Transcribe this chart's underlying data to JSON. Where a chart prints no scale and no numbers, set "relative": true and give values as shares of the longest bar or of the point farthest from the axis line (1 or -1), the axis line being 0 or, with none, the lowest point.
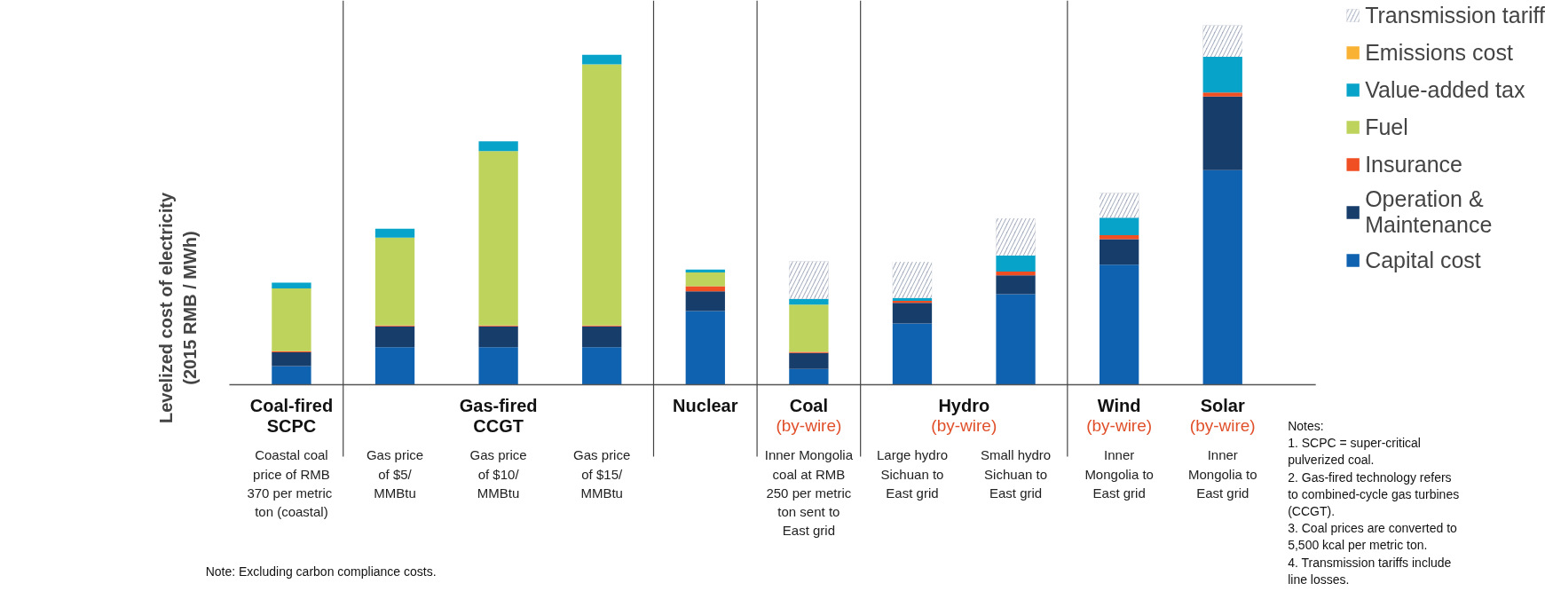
{
  "chart_data": {
    "type": "bar",
    "stacked": true,
    "relative": true,
    "ylabel": "Levelized cost of electricity\n(2015 RMB / MWh)",
    "categories": [
      "Coastal coal\nprice of RMB\n370 per  metric\nton (coastal)",
      "Gas price\nof $5/\nMMBtu",
      "Gas price\nof $10/\nMMBtu",
      "Gas price\nof $15/\nMMBtu",
      null,
      "Inner Mongolia\ncoal at RMB\n250 per metric\nton sent to\nEast grid",
      "Large hydro\nSichuan to\nEast grid",
      "Small hydro\nSichuan to\nEast grid",
      "Inner\nMongolia to\nEast grid",
      "Inner\nMongolia to\nEast grid"
    ],
    "series": [
      {
        "name": "Capital cost",
        "color": "#0f62b0",
        "values": [
          0.052,
          0.104,
          0.104,
          0.104,
          0.205,
          0.044,
          0.17,
          0.252,
          0.334,
          0.597
        ]
      },
      {
        "name": "Operation &\nMaintenance",
        "color": "#173d6b",
        "values": [
          0.038,
          0.058,
          0.058,
          0.058,
          0.055,
          0.044,
          0.058,
          0.052,
          0.071,
          0.205
        ]
      },
      {
        "name": "Insurance",
        "color": "#f04e23",
        "values": [
          0.003,
          0.003,
          0.003,
          0.003,
          0.014,
          0.003,
          0.005,
          0.011,
          0.011,
          0.011
        ]
      },
      {
        "name": "Fuel",
        "color": "#bed35b",
        "values": [
          0.175,
          0.244,
          0.485,
          0.726,
          0.038,
          0.132,
          null,
          null,
          null,
          null
        ]
      },
      {
        "name": "Value-added tax",
        "color": "#07a3c9",
        "values": [
          0.016,
          0.025,
          0.027,
          0.027,
          0.008,
          0.016,
          0.008,
          0.044,
          0.049,
          0.099
        ]
      },
      {
        "name": "Emissions cost",
        "color": "#f9b233",
        "values": [
          null,
          null,
          null,
          null,
          null,
          null,
          null,
          null,
          null,
          null
        ]
      },
      {
        "name": "Transmission tariff",
        "color": "#a9b1c2",
        "values": [
          null,
          null,
          null,
          null,
          null,
          0.104,
          0.101,
          0.104,
          0.068,
          0.088
        ]
      }
    ],
    "legend": "top right",
    "grid": false,
    "annotations": [
      "Coal-fired\nSCPC",
      "Gas-fired\nCCGT",
      "Nuclear",
      "Coal\n(by-wire)",
      "Hydro\n(by-wire)",
      "Wind\n(by-wire)",
      "Solar\n(by-wire)",
      "Notes:\n1. SCPC = super-critical\npulverized coal.\n2. Gas-fired technology refers\nto combined-cycle gas turbines\n(CCGT).\n3. Coal prices are converted to\n5,500 kcal per metric ton.\n4. Transmission tariffs include\nline losses.",
      "Note: Excluding carbon compliance costs."
    ]
  }
}
